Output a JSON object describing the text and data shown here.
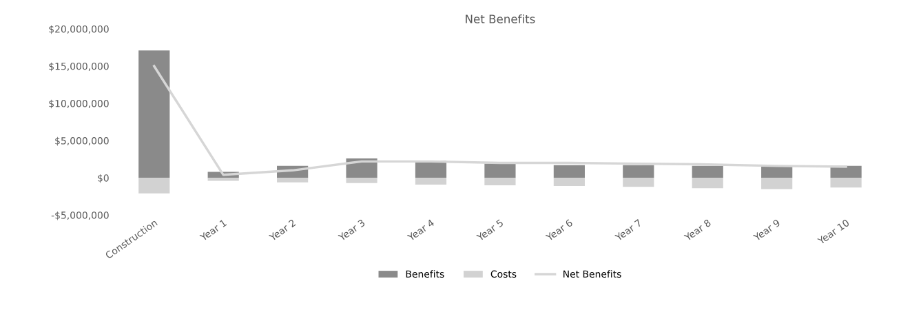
{
  "chart_data": {
    "type": "bar",
    "title": "Net Benefits",
    "categories": [
      "Construction",
      "Year 1",
      "Year 2",
      "Year 3",
      "Year 4",
      "Year 5",
      "Year 6",
      "Year 7",
      "Year 8",
      "Year 9",
      "Year 10"
    ],
    "series": [
      {
        "name": "Benefits",
        "color": "#8a8a8a",
        "values": [
          17100000,
          800000,
          1600000,
          2600000,
          2300000,
          1900000,
          1700000,
          1700000,
          1600000,
          1500000,
          1600000
        ]
      },
      {
        "name": "Costs",
        "color": "#d2d2d2",
        "values": [
          -2100000,
          -400000,
          -600000,
          -700000,
          -900000,
          -1000000,
          -1100000,
          -1200000,
          -1400000,
          -1500000,
          -1300000
        ]
      },
      {
        "name": "Net Benefits",
        "type": "line",
        "color": "#d6d6d6",
        "values": [
          15000000,
          400000,
          1000000,
          2200000,
          2200000,
          2000000,
          2000000,
          1900000,
          1800000,
          1600000,
          1500000
        ]
      }
    ],
    "ylim": [
      -5000000,
      20000000
    ],
    "yticks": [
      {
        "value": -5000000,
        "label": "-$5,000,000"
      },
      {
        "value": 0,
        "label": "$0"
      },
      {
        "value": 5000000,
        "label": "$5,000,000"
      },
      {
        "value": 10000000,
        "label": "$10,000,000"
      },
      {
        "value": 15000000,
        "label": "$15,000,000"
      },
      {
        "value": 20000000,
        "label": "$20,000,000"
      }
    ],
    "stacked": true,
    "grid": false,
    "legend": "bottom"
  }
}
